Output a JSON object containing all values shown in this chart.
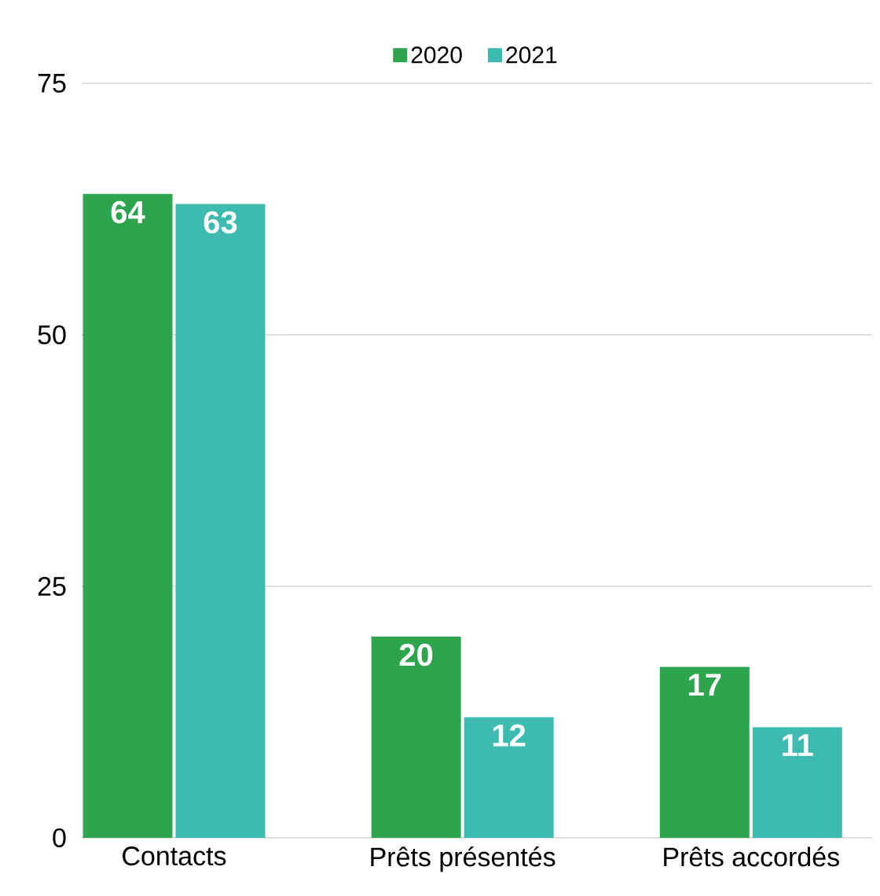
{
  "chart_data": {
    "type": "bar",
    "categories": [
      "Contacts",
      "Prêts présentés",
      "Prêts accordés"
    ],
    "series": [
      {
        "name": "2020",
        "color": "#2ea44f",
        "values": [
          64,
          20,
          17
        ]
      },
      {
        "name": "2021",
        "color": "#3dbbb0",
        "values": [
          63,
          12,
          11
        ]
      }
    ],
    "ylim": [
      0,
      75
    ],
    "yticks": [
      0,
      25,
      50,
      75
    ],
    "grid": "y",
    "legend": "top",
    "data_labels": true
  }
}
